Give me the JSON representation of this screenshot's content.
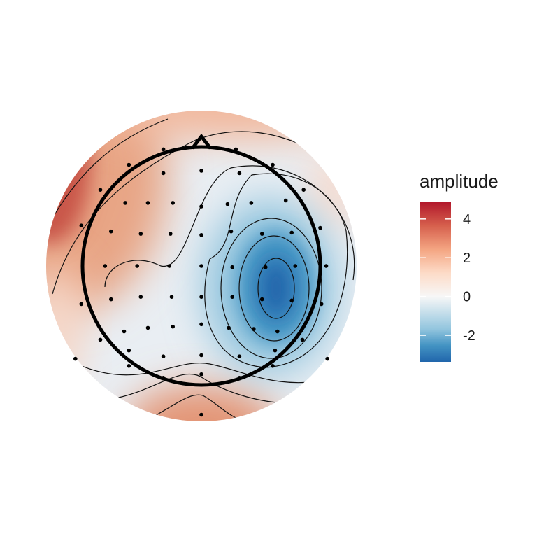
{
  "chart_data": {
    "type": "topoplot",
    "legend_title": "amplitude",
    "lim": [
      -3.37,
      4.86
    ],
    "ticks": [
      -2,
      0,
      2,
      4
    ],
    "colors": [
      "#2166ac",
      "#4393c3",
      "#92c5de",
      "#f7f7f7",
      "#fddbc7",
      "#f4a582",
      "#d6604d",
      "#b2182b"
    ],
    "electrodes": {
      "x": [
        -3.2,
        2.9,
        -6.1,
        -3.2,
        0,
        3.2,
        6.0,
        -8.5,
        -6.4,
        -4.5,
        -2.4,
        0,
        2.2,
        4.2,
        7.1,
        8.6,
        -10.1,
        -7.6,
        -5.1,
        -2.6,
        0,
        2.5,
        5.1,
        7.6,
        10.0,
        -8.1,
        -5.4,
        -2.7,
        0,
        2.6,
        5.4,
        7.9,
        10.5,
        -10.1,
        -7.6,
        -5.1,
        -2.5,
        0,
        2.6,
        5.1,
        7.6,
        10.1,
        -8.5,
        -6.5,
        -4.5,
        -2.4,
        0,
        2.3,
        4.4,
        6.4,
        8.5,
        -10.6,
        -6.1,
        -3.2,
        0,
        3.2,
        6.2,
        10.6,
        -6.1,
        -3.2,
        0,
        3.2,
        6.0,
        0
      ],
      "y": [
        9.8,
        9.8,
        8.5,
        7.8,
        8.0,
        7.8,
        8.5,
        6.4,
        5.3,
        5.3,
        5.3,
        5.0,
        5.2,
        5.3,
        5.5,
        6.4,
        3.4,
        2.9,
        2.7,
        2.7,
        2.6,
        2.9,
        2.7,
        2.8,
        3.2,
        0,
        0,
        0,
        0,
        -0.1,
        -0.1,
        0,
        0,
        -3.2,
        -2.8,
        -2.6,
        -2.6,
        -2.6,
        -2.6,
        -2.8,
        -2.9,
        -3.2,
        -6.2,
        -5.5,
        -5.2,
        -5.1,
        -4.9,
        -5.2,
        -5.3,
        -5.5,
        -6.2,
        -7.8,
        -7.1,
        -7.6,
        -7.5,
        -7.6,
        -7.1,
        -7.8,
        -8.4,
        -9.4,
        -9.1,
        -9.4,
        -8.4,
        -12.5
      ]
    }
  }
}
